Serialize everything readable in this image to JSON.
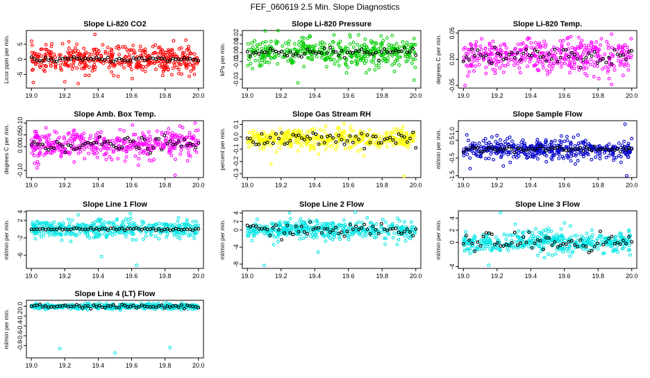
{
  "main_title": "FEF_060619  2.5 Min. Slope Diagnostics",
  "chart_data": [
    {
      "type": "scatter",
      "title": "Slope Li-820 CO2",
      "ylabel": "Licor ppm per min.",
      "color": "#ff0000",
      "xlim": [
        18.97,
        20.03
      ],
      "ylim": [
        -9.5,
        9.5
      ],
      "xticks": [
        "19.0",
        "19.2",
        "19.4",
        "19.6",
        "19.8",
        "20.0"
      ],
      "yticks": [
        "-5",
        "0",
        "5"
      ],
      "ytick_values": [
        -5,
        0,
        5
      ],
      "spread": 2.2,
      "center": 0,
      "black_spread": 0.4,
      "outliers": [
        [
          19.38,
          8.2
        ],
        [
          19.28,
          -8.0
        ],
        [
          19.2,
          -7.4
        ],
        [
          19.52,
          4.3
        ]
      ]
    },
    {
      "type": "scatter",
      "title": "Slope Li-820 Pressure",
      "ylabel": "kPa per min.",
      "color": "#00cc00",
      "xlim": [
        18.97,
        20.03
      ],
      "ylim": [
        -0.04,
        0.025
      ],
      "xticks": [
        "19.0",
        "19.2",
        "19.4",
        "19.6",
        "19.8",
        "20.0"
      ],
      "yticks": [
        "-0.03",
        "-0.01",
        "0.00",
        "0.01",
        "0.02"
      ],
      "ytick_values": [
        -0.03,
        -0.01,
        0.0,
        0.01,
        0.02
      ],
      "spread": 0.008,
      "center": 0,
      "black_spread": 0.003,
      "outliers": [
        [
          19.3,
          -0.034
        ],
        [
          19.99,
          -0.031
        ],
        [
          19.66,
          0.02
        ],
        [
          19.99,
          0.016
        ],
        [
          19.03,
          -0.018
        ]
      ]
    },
    {
      "type": "scatter",
      "title": "Slope Li-820 Temp.",
      "ylabel": "degrees C per min.",
      "color": "#ff00ff",
      "xlim": [
        18.97,
        20.03
      ],
      "ylim": [
        -0.055,
        0.055
      ],
      "xticks": [
        "19.0",
        "19.2",
        "19.4",
        "19.6",
        "19.8",
        "20.0"
      ],
      "yticks": [
        "-0.05",
        "0.00",
        "0.05"
      ],
      "ytick_values": [
        -0.05,
        0.0,
        0.05
      ],
      "spread": 0.016,
      "center": 0.005,
      "black_spread": 0.008,
      "outliers": [
        [
          19.88,
          -0.048
        ],
        [
          19.88,
          0.048
        ],
        [
          19.01,
          -0.05
        ]
      ]
    },
    {
      "type": "scatter",
      "title": "Slope Amb. Box Temp.",
      "ylabel": "degrees C per min.",
      "color": "#ff00ff",
      "xlim": [
        18.97,
        20.03
      ],
      "ylim": [
        -0.13,
        0.11
      ],
      "xticks": [
        "19.0",
        "19.2",
        "19.4",
        "19.6",
        "19.8",
        "20.0"
      ],
      "yticks": [
        "-0.10",
        "0.00",
        "0.05",
        "0.10"
      ],
      "ytick_values": [
        -0.1,
        0.0,
        0.05,
        0.1
      ],
      "spread": 0.03,
      "center": 0.01,
      "black_spread": 0.015,
      "outliers": [
        [
          19.86,
          -0.12
        ],
        [
          19.98,
          0.1
        ],
        [
          19.02,
          -0.07
        ]
      ]
    },
    {
      "type": "scatter",
      "title": "Slope Gas Stream RH",
      "ylabel": "percent per min.",
      "color": "#ffff00",
      "xlim": [
        18.97,
        20.03
      ],
      "ylim": [
        -0.33,
        0.13
      ],
      "xticks": [
        "19.0",
        "19.2",
        "19.4",
        "19.6",
        "19.8",
        "20.0"
      ],
      "yticks": [
        "-0.3",
        "-0.2",
        "-0.1",
        "0.0",
        "0.1"
      ],
      "ytick_values": [
        -0.3,
        -0.2,
        -0.1,
        0.0,
        0.1
      ],
      "spread": 0.04,
      "center": -0.02,
      "black_spread": 0.04,
      "outliers": [
        [
          19.14,
          -0.22
        ],
        [
          19.93,
          -0.32
        ]
      ]
    },
    {
      "type": "scatter",
      "title": "Slope Sample Flow",
      "ylabel": "ml/min per min.",
      "color": "#0000cc",
      "xlim": [
        18.97,
        20.03
      ],
      "ylim": [
        -1.6,
        1.6
      ],
      "xticks": [
        "19.0",
        "19.2",
        "19.4",
        "19.6",
        "19.8",
        "20.0"
      ],
      "yticks": [
        "-1.5",
        "-0.5",
        "0.5",
        "1.0"
      ],
      "ytick_values": [
        -1.5,
        -0.5,
        0.5,
        1.0
      ],
      "spread": 0.28,
      "center": 0,
      "black_spread": 0.08,
      "outliers": [
        [
          19.96,
          1.4
        ],
        [
          19.97,
          -1.5
        ],
        [
          19.04,
          -1.1
        ],
        [
          19.02,
          0.8
        ]
      ]
    },
    {
      "type": "scatter",
      "title": "Slope Line 1 Flow",
      "ylabel": "ml/min per min.",
      "color": "#00e5e5",
      "xlim": [
        18.97,
        20.03
      ],
      "ylim": [
        -9,
        4.2
      ],
      "xticks": [
        "19.0",
        "19.2",
        "19.4",
        "19.6",
        "19.8",
        "20.0"
      ],
      "yticks": [
        "-6",
        "-2",
        "2",
        "4"
      ],
      "ytick_values": [
        -6,
        -2,
        2,
        4
      ],
      "spread": 1.0,
      "center": 0,
      "black_spread": 0.15,
      "outliers": [
        [
          19.63,
          -8.3
        ],
        [
          19.42,
          -6.3
        ],
        [
          19.28,
          3.3
        ],
        [
          19.88,
          2.6
        ]
      ]
    },
    {
      "type": "scatter",
      "title": "Slope Line 2 Flow",
      "ylabel": "ml/min per min.",
      "color": "#00e5e5",
      "xlim": [
        18.97,
        20.03
      ],
      "ylim": [
        -9,
        4.5
      ],
      "xticks": [
        "19.0",
        "19.2",
        "19.4",
        "19.6",
        "19.8",
        "20.0"
      ],
      "yticks": [
        "-8",
        "-4",
        "0",
        "2",
        "4"
      ],
      "ytick_values": [
        -8,
        -4,
        0,
        2,
        4
      ],
      "spread": 1.1,
      "center": 0,
      "black_spread": 0.8,
      "outliers": [
        [
          19.25,
          4.0
        ],
        [
          19.1,
          -8.3
        ],
        [
          19.42,
          -5.2
        ]
      ]
    },
    {
      "type": "scatter",
      "title": "Slope Line 3 Flow",
      "ylabel": "ml/min per min.",
      "color": "#00e5e5",
      "xlim": [
        18.97,
        20.03
      ],
      "ylim": [
        -4.3,
        5.2
      ],
      "xticks": [
        "19.0",
        "19.2",
        "19.4",
        "19.6",
        "19.8",
        "20.0"
      ],
      "yticks": [
        "-4",
        "0",
        "2",
        "4"
      ],
      "ytick_values": [
        -4,
        0,
        2,
        4
      ],
      "spread": 0.9,
      "center": 0,
      "black_spread": 0.8,
      "outliers": [
        [
          19.22,
          4.9
        ],
        [
          19.15,
          -3.8
        ],
        [
          19.6,
          3.2
        ]
      ]
    },
    {
      "type": "scatter",
      "title": "Slope Line 4 (LT) Flow",
      "ylabel": "ml/min per min.",
      "color": "#00e5e5",
      "xlim": [
        18.97,
        20.03
      ],
      "ylim": [
        -1.05,
        0.12
      ],
      "xticks": [
        "19.0",
        "19.2",
        "19.4",
        "19.6",
        "19.8",
        "20.0"
      ],
      "yticks": [
        "-0.8",
        "-0.6",
        "-0.4",
        "-0.2",
        "0.0"
      ],
      "ytick_values": [
        -0.8,
        -0.6,
        -0.4,
        -0.2,
        0.0
      ],
      "spread": 0.025,
      "center": -0.005,
      "black_spread": 0.02,
      "outliers": [
        [
          19.17,
          -0.86
        ],
        [
          19.83,
          -0.84
        ],
        [
          19.5,
          -0.95
        ]
      ]
    }
  ]
}
